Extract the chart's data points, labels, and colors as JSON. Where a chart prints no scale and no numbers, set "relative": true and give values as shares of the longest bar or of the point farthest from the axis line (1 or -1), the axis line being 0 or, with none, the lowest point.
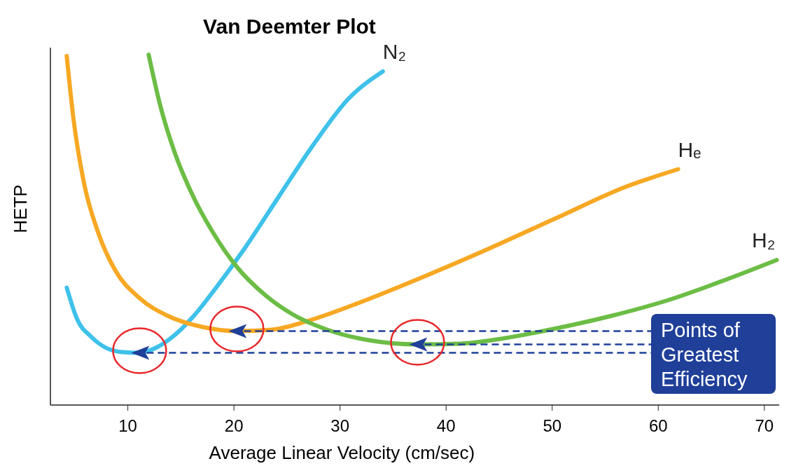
{
  "chart_data": {
    "type": "line",
    "title": "Van Deemter Plot",
    "xlabel": "Average Linear Velocity (cm/sec)",
    "ylabel": "HETP",
    "relative": true,
    "xlim": [
      2.7,
      71.4
    ],
    "xticks": [
      10,
      20,
      30,
      40,
      50,
      60,
      70
    ],
    "grid": false,
    "marker": "none",
    "line_style": "solid",
    "series": [
      {
        "name": "N₂",
        "color": "#3ec1ea",
        "x": [
          4.24,
          5.22,
          6.54,
          7.83,
          9.48,
          11.11,
          12.75,
          14.39,
          16.35,
          18.32,
          20.94,
          24.21,
          27.49,
          30.76,
          34.03
        ],
        "values": [
          0.335,
          0.245,
          0.195,
          0.165,
          0.151,
          0.149,
          0.165,
          0.199,
          0.259,
          0.335,
          0.444,
          0.594,
          0.743,
          0.873,
          0.952
        ]
      },
      {
        "name": "Hₑ",
        "color": "#f7a823",
        "x": [
          4.24,
          4.89,
          5.87,
          7.18,
          8.82,
          11.11,
          13.73,
          17.01,
          20.28,
          23.55,
          27.48,
          32.07,
          37.31,
          43.86,
          50.41,
          56.95,
          61.87
        ],
        "values": [
          0.996,
          0.813,
          0.633,
          0.494,
          0.384,
          0.305,
          0.255,
          0.223,
          0.211,
          0.215,
          0.245,
          0.295,
          0.359,
          0.444,
          0.534,
          0.623,
          0.673
        ]
      },
      {
        "name": "H₂",
        "color": "#6cbd45",
        "x": [
          11.96,
          13.07,
          14.39,
          16.02,
          17.99,
          20.28,
          22.9,
          25.52,
          28.79,
          32.72,
          37.31,
          41.24,
          45.17,
          50.41,
          55.65,
          60.89,
          66.13,
          71.17
        ],
        "values": [
          1.0,
          0.853,
          0.723,
          0.604,
          0.494,
          0.394,
          0.315,
          0.259,
          0.215,
          0.185,
          0.173,
          0.175,
          0.189,
          0.219,
          0.255,
          0.299,
          0.355,
          0.414
        ]
      }
    ],
    "annotations": [
      "Points of Greatest Efficiency"
    ]
  }
}
